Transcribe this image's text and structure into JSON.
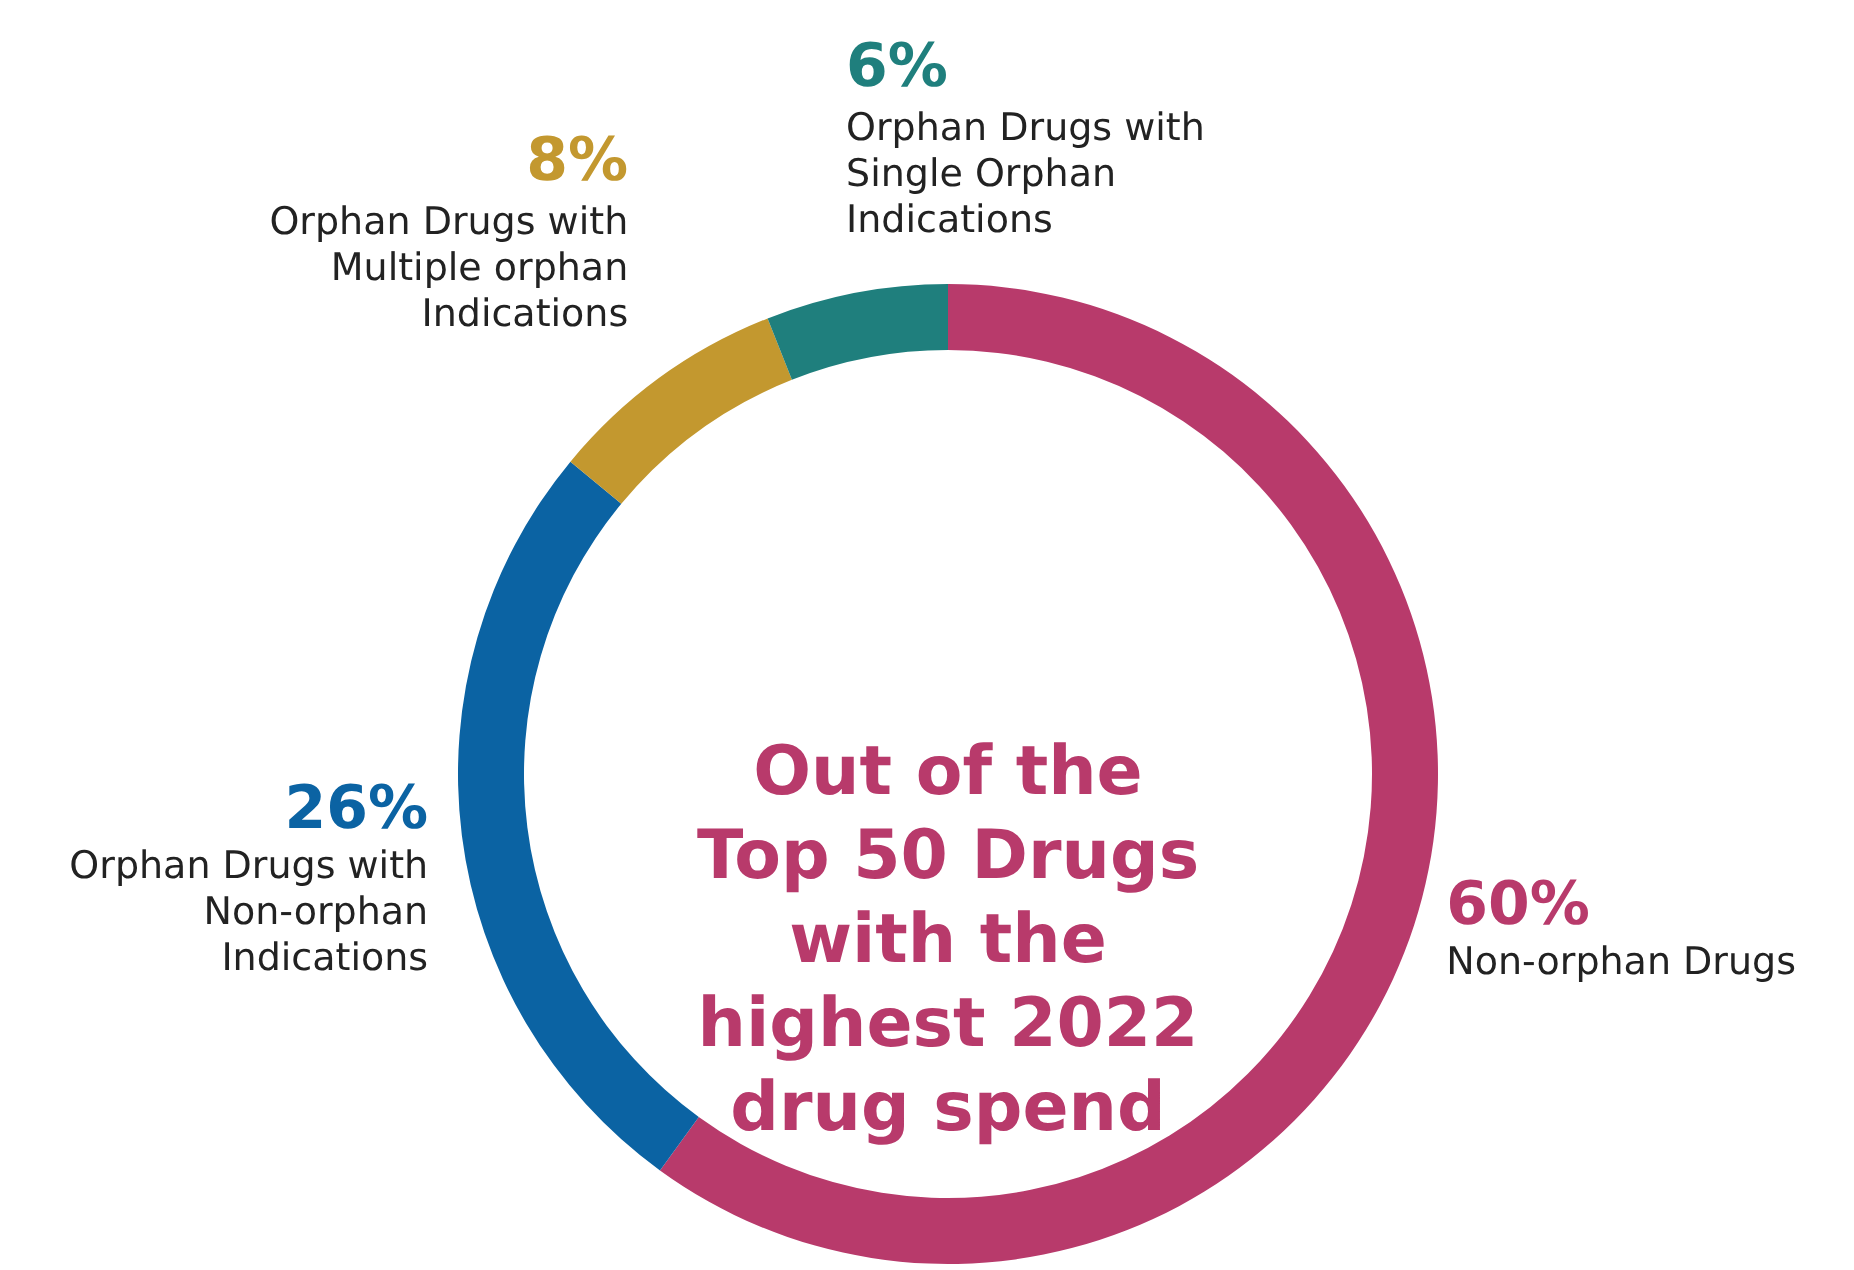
{
  "chart_data": {
    "type": "donut",
    "title": "Out of the Top 50 Drugs with the highest 2022 drug spend",
    "categories": [
      "Non-orphan Drugs",
      "Orphan Drugs with Non-orphan Indications",
      "Orphan Drugs with Multiple orphan Indications",
      "Orphan Drugs with Single Orphan Indications"
    ],
    "values": [
      60,
      26,
      8,
      6
    ],
    "value_labels": [
      "60%",
      "26%",
      "8%",
      "6%"
    ],
    "colors": [
      "#b83a6b",
      "#0b63a3",
      "#c3982f",
      "#1f7f7d"
    ]
  }
}
